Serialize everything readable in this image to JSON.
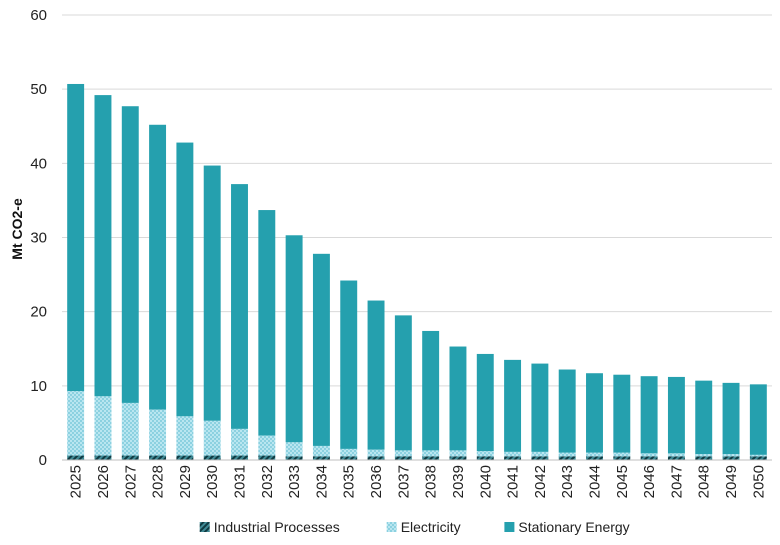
{
  "chart_data": {
    "type": "bar",
    "stacked": true,
    "title": "",
    "xlabel": "",
    "ylabel": "Mt CO2-e",
    "ylim": [
      0,
      60
    ],
    "yticks": [
      0,
      10,
      20,
      30,
      40,
      50,
      60
    ],
    "grid": true,
    "legend_position": "bottom",
    "categories": [
      "2025",
      "2026",
      "2027",
      "2028",
      "2029",
      "2030",
      "2031",
      "2032",
      "2033",
      "2034",
      "2035",
      "2036",
      "2037",
      "2038",
      "2039",
      "2040",
      "2041",
      "2042",
      "2043",
      "2044",
      "2045",
      "2046",
      "2047",
      "2048",
      "2049",
      "2050"
    ],
    "series": [
      {
        "name": "Industrial Processes",
        "color": "#0f4b55",
        "pattern": "diagonal",
        "values": [
          0.6,
          0.6,
          0.6,
          0.6,
          0.6,
          0.6,
          0.6,
          0.6,
          0.5,
          0.5,
          0.5,
          0.5,
          0.5,
          0.5,
          0.5,
          0.5,
          0.5,
          0.5,
          0.5,
          0.5,
          0.5,
          0.5,
          0.5,
          0.5,
          0.5,
          0.5
        ]
      },
      {
        "name": "Electricity",
        "color": "#9fd9e8",
        "pattern": "dots",
        "values": [
          8.7,
          8.0,
          7.1,
          6.2,
          5.3,
          4.7,
          3.6,
          2.7,
          1.9,
          1.4,
          1.0,
          0.9,
          0.8,
          0.8,
          0.8,
          0.7,
          0.6,
          0.6,
          0.5,
          0.5,
          0.5,
          0.4,
          0.4,
          0.3,
          0.3,
          0.2
        ]
      },
      {
        "name": "Stationary Energy",
        "color": "#25a0ae",
        "pattern": "solid",
        "values": [
          41.4,
          40.6,
          40.0,
          38.4,
          36.9,
          34.4,
          33.0,
          30.4,
          27.9,
          25.9,
          22.7,
          20.1,
          18.2,
          16.1,
          14.0,
          13.1,
          12.4,
          11.9,
          11.2,
          10.7,
          10.5,
          10.4,
          10.3,
          9.9,
          9.6,
          9.5
        ]
      }
    ]
  }
}
